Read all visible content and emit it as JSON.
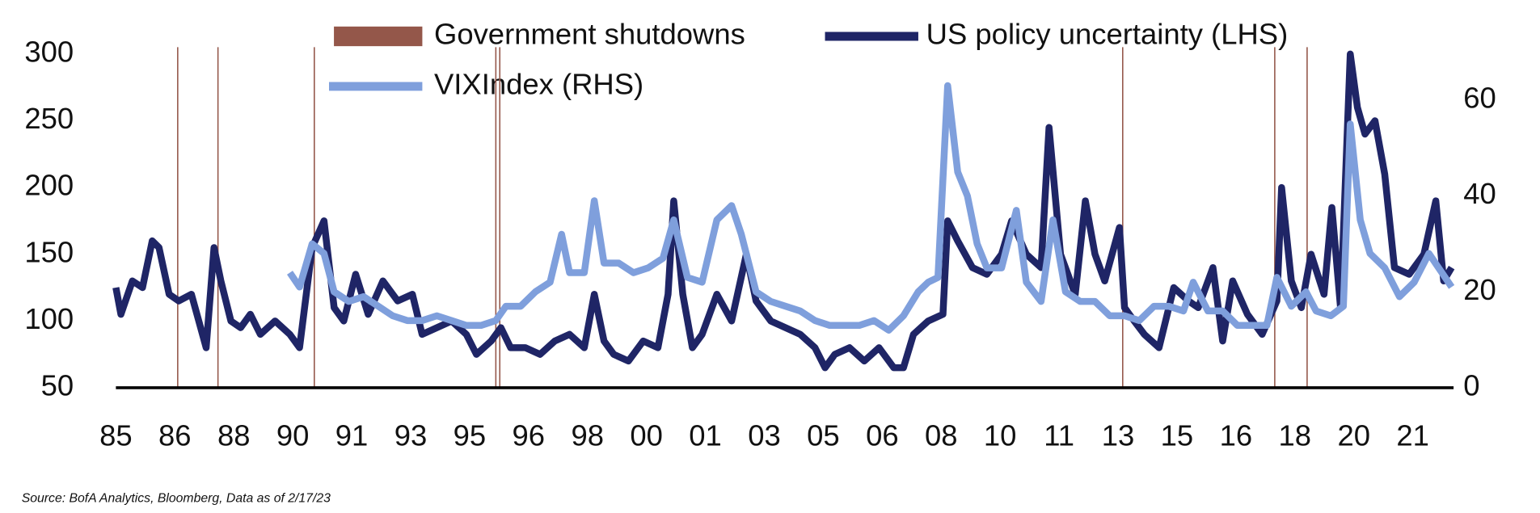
{
  "chart_data": {
    "type": "line",
    "source": "Source: BofA Analytics, Bloomberg, Data as of 2/17/23",
    "xlim": [
      1985,
      2022.16
    ],
    "xticks": [
      {
        "value": 1985.0,
        "label": "85"
      },
      {
        "value": 1986.64,
        "label": "86"
      },
      {
        "value": 1988.28,
        "label": "88"
      },
      {
        "value": 1989.92,
        "label": "90"
      },
      {
        "value": 1991.56,
        "label": "91"
      },
      {
        "value": 1993.2,
        "label": "93"
      },
      {
        "value": 1994.84,
        "label": "95"
      },
      {
        "value": 1996.48,
        "label": "96"
      },
      {
        "value": 1998.12,
        "label": "98"
      },
      {
        "value": 1999.76,
        "label": "00"
      },
      {
        "value": 2001.4,
        "label": "01"
      },
      {
        "value": 2003.04,
        "label": "03"
      },
      {
        "value": 2004.68,
        "label": "05"
      },
      {
        "value": 2006.32,
        "label": "06"
      },
      {
        "value": 2007.96,
        "label": "08"
      },
      {
        "value": 2009.6,
        "label": "10"
      },
      {
        "value": 2011.24,
        "label": "11"
      },
      {
        "value": 2012.88,
        "label": "13"
      },
      {
        "value": 2014.52,
        "label": "15"
      },
      {
        "value": 2016.16,
        "label": "16"
      },
      {
        "value": 2017.8,
        "label": "18"
      },
      {
        "value": 2019.44,
        "label": "20"
      },
      {
        "value": 2021.08,
        "label": "21"
      }
    ],
    "ylim": [
      50,
      300
    ],
    "yticks": [
      50,
      100,
      150,
      200,
      250,
      300
    ],
    "y2lim": [
      0,
      69.6
    ],
    "y2ticks": [
      0,
      20,
      40,
      60
    ],
    "shutdowns": {
      "name": "Government shutdowns",
      "color": "#94574a",
      "x": [
        1986.72,
        1987.84,
        1990.52,
        1995.57,
        1995.68,
        2013.01,
        2017.24,
        2018.14
      ]
    },
    "series": [
      {
        "name": "US policy uncertainty  (LHS)",
        "color": "#1f2566",
        "axis": "y",
        "x": [
          1985.0,
          1985.14,
          1985.46,
          1985.74,
          1986.01,
          1986.2,
          1986.48,
          1986.75,
          1987.1,
          1987.51,
          1987.73,
          1987.92,
          1988.2,
          1988.47,
          1988.74,
          1989.02,
          1989.43,
          1989.84,
          1990.11,
          1990.46,
          1990.79,
          1991.07,
          1991.34,
          1991.67,
          1992.02,
          1992.43,
          1992.84,
          1993.25,
          1993.52,
          1993.93,
          1994.34,
          1994.75,
          1995.03,
          1995.44,
          1995.71,
          1995.98,
          1996.39,
          1996.8,
          1997.21,
          1997.62,
          1998.03,
          1998.31,
          1998.58,
          1998.85,
          1999.26,
          1999.67,
          2000.08,
          2000.36,
          2000.52,
          2000.77,
          2001.04,
          2001.31,
          2001.72,
          2002.13,
          2002.54,
          2002.81,
          2003.22,
          2003.63,
          2004.04,
          2004.45,
          2004.73,
          2005.0,
          2005.41,
          2005.82,
          2006.23,
          2006.64,
          2006.91,
          2007.19,
          2007.6,
          2008.01,
          2008.14,
          2008.42,
          2008.83,
          2009.23,
          2009.64,
          2009.92,
          2010.33,
          2010.74,
          2010.96,
          2011.28,
          2011.69,
          2011.97,
          2012.24,
          2012.51,
          2012.92,
          2013.06,
          2013.33,
          2013.61,
          2014.02,
          2014.43,
          2014.84,
          2015.11,
          2015.52,
          2015.79,
          2016.07,
          2016.48,
          2016.89,
          2017.3,
          2017.43,
          2017.7,
          2017.98,
          2018.25,
          2018.61,
          2018.83,
          2019.07,
          2019.34,
          2019.54,
          2019.75,
          2020.03,
          2020.3,
          2020.57,
          2020.98,
          2021.39,
          2021.72,
          2021.94,
          2022.16
        ],
        "values": [
          125,
          105,
          130,
          125,
          160,
          155,
          120,
          115,
          120,
          80,
          155,
          130,
          100,
          95,
          105,
          90,
          100,
          90,
          80,
          155,
          175,
          110,
          100,
          135,
          105,
          130,
          115,
          120,
          90,
          95,
          100,
          90,
          75,
          85,
          95,
          80,
          80,
          75,
          85,
          90,
          80,
          120,
          85,
          75,
          70,
          85,
          80,
          120,
          190,
          120,
          80,
          90,
          120,
          100,
          150,
          115,
          100,
          95,
          90,
          80,
          65,
          75,
          80,
          70,
          80,
          65,
          65,
          90,
          100,
          105,
          175,
          160,
          140,
          135,
          150,
          175,
          150,
          140,
          245,
          150,
          120,
          190,
          150,
          130,
          170,
          110,
          100,
          90,
          80,
          125,
          115,
          110,
          140,
          85,
          130,
          105,
          90,
          115,
          200,
          130,
          110,
          150,
          120,
          185,
          110,
          300,
          260,
          240,
          250,
          210,
          140,
          135,
          150,
          190,
          130,
          140
        ]
      },
      {
        "name": "VIXIndex (RHS)",
        "color": "#7f9fdc",
        "axis": "y2",
        "x": [
          1989.84,
          1990.11,
          1990.46,
          1990.79,
          1991.07,
          1991.48,
          1991.89,
          1992.3,
          1992.7,
          1993.11,
          1993.52,
          1993.93,
          1994.34,
          1994.75,
          1995.16,
          1995.57,
          1995.85,
          1996.26,
          1996.67,
          1997.08,
          1997.4,
          1997.62,
          1998.03,
          1998.31,
          1998.58,
          1998.99,
          1999.4,
          1999.81,
          2000.22,
          2000.52,
          2000.9,
          2001.31,
          2001.72,
          2002.13,
          2002.4,
          2002.81,
          2003.22,
          2003.63,
          2004.04,
          2004.45,
          2004.86,
          2005.27,
          2005.68,
          2006.09,
          2006.5,
          2006.91,
          2007.32,
          2007.6,
          2007.87,
          2008.14,
          2008.42,
          2008.69,
          2008.96,
          2009.23,
          2009.64,
          2010.05,
          2010.33,
          2010.74,
          2011.07,
          2011.42,
          2011.83,
          2012.24,
          2012.65,
          2013.06,
          2013.47,
          2013.88,
          2014.29,
          2014.7,
          2014.97,
          2015.38,
          2015.79,
          2016.2,
          2016.61,
          2017.02,
          2017.3,
          2017.7,
          2018.11,
          2018.39,
          2018.8,
          2019.15,
          2019.34,
          2019.62,
          2019.89,
          2020.3,
          2020.71,
          2021.12,
          2021.53,
          2021.8,
          2022.16
        ],
        "values": [
          24,
          21,
          30,
          28,
          20,
          18,
          19,
          17,
          15,
          14,
          14,
          15,
          14,
          13,
          13,
          14,
          17,
          17,
          20,
          22,
          32,
          24,
          24,
          39,
          26,
          26,
          24,
          25,
          27,
          35,
          23,
          22,
          35,
          38,
          32,
          20,
          18,
          17,
          16,
          14,
          13,
          13,
          13,
          14,
          12,
          15,
          20,
          22,
          23,
          63,
          45,
          40,
          30,
          25,
          25,
          37,
          22,
          18,
          35,
          20,
          18,
          18,
          15,
          15,
          14,
          17,
          17,
          16,
          22,
          16,
          16,
          13,
          13,
          13,
          23,
          17,
          20,
          16,
          15,
          17,
          55,
          35,
          28,
          25,
          19,
          22,
          28,
          25,
          21
        ]
      }
    ]
  }
}
